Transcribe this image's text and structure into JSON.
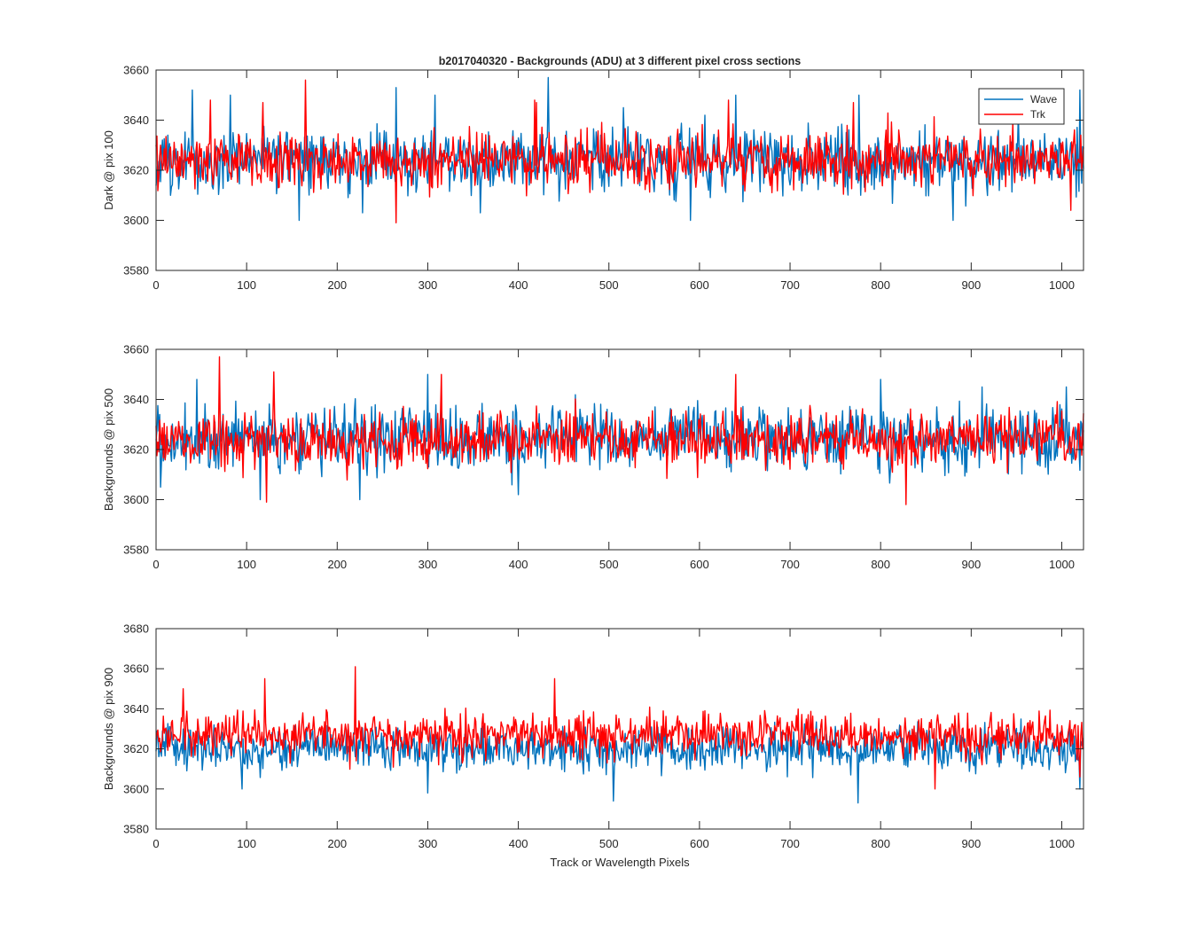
{
  "figure": {
    "title": "b2017040320 - Backgrounds (ADU) at 3 different pixel cross sections",
    "xlabel": "Track or Wavelength Pixels"
  },
  "legend": {
    "items": [
      {
        "name": "Wave",
        "color": "#0072BD"
      },
      {
        "name": "Trk",
        "color": "#FF0000"
      }
    ]
  },
  "chart_data": [
    {
      "type": "line",
      "ylabel": "Dark @ pix 100",
      "xlim": [
        0,
        1024
      ],
      "ylim": [
        3580,
        3660
      ],
      "xticks": [
        0,
        100,
        200,
        300,
        400,
        500,
        600,
        700,
        800,
        900,
        1000
      ],
      "yticks": [
        3580,
        3600,
        3620,
        3640,
        3660
      ],
      "legend": "top-right",
      "grid": false,
      "series": [
        {
          "name": "Wave",
          "color": "#0072BD",
          "mean": 3624,
          "spread": 7,
          "x": [
            16,
            40,
            82,
            158,
            228,
            265,
            308,
            358,
            433,
            516,
            590,
            640,
            776,
            880,
            1020
          ],
          "y": [
            3610,
            3652,
            3650,
            3600,
            3603,
            3653,
            3650,
            3603,
            3657,
            3645,
            3600,
            3650,
            3650,
            3600,
            3652
          ]
        },
        {
          "name": "Trk",
          "color": "#FF0000",
          "mean": 3624,
          "spread": 6,
          "x": [
            60,
            118,
            165,
            265,
            418,
            420,
            632,
            770,
            1010
          ],
          "y": [
            3648,
            3647,
            3656,
            3599,
            3648,
            3647,
            3648,
            3647,
            3604
          ]
        }
      ]
    },
    {
      "type": "line",
      "ylabel": "Backgrounds @ pix 500",
      "xlim": [
        0,
        1024
      ],
      "ylim": [
        3580,
        3660
      ],
      "xticks": [
        0,
        100,
        200,
        300,
        400,
        500,
        600,
        700,
        800,
        900,
        1000
      ],
      "yticks": [
        3580,
        3600,
        3620,
        3640,
        3660
      ],
      "grid": false,
      "series": [
        {
          "name": "Wave",
          "color": "#0072BD",
          "mean": 3625,
          "spread": 7,
          "x": [
            5,
            45,
            115,
            225,
            300,
            400,
            800,
            912,
            1005
          ],
          "y": [
            3605,
            3648,
            3600,
            3600,
            3650,
            3602,
            3648,
            3645,
            3645
          ]
        },
        {
          "name": "Trk",
          "color": "#FF0000",
          "mean": 3624,
          "spread": 6,
          "x": [
            70,
            122,
            130,
            315,
            640,
            828
          ],
          "y": [
            3657,
            3599,
            3651,
            3650,
            3650,
            3598
          ]
        }
      ]
    },
    {
      "type": "line",
      "ylabel": "Backgrounds @ pix 900",
      "xlim": [
        0,
        1024
      ],
      "ylim": [
        3580,
        3680
      ],
      "xticks": [
        0,
        100,
        200,
        300,
        400,
        500,
        600,
        700,
        800,
        900,
        1000
      ],
      "yticks": [
        3580,
        3600,
        3620,
        3640,
        3660,
        3680
      ],
      "grid": false,
      "series": [
        {
          "name": "Wave",
          "color": "#0072BD",
          "mean": 3620,
          "spread": 6,
          "x": [
            95,
            300,
            505,
            775,
            1020
          ],
          "y": [
            3600,
            3598,
            3594,
            3593,
            3600
          ]
        },
        {
          "name": "Trk",
          "color": "#FF0000",
          "mean": 3627,
          "spread": 6,
          "x": [
            30,
            120,
            220,
            440,
            860,
            1020
          ],
          "y": [
            3650,
            3655,
            3661,
            3655,
            3600,
            3606
          ]
        }
      ]
    }
  ]
}
